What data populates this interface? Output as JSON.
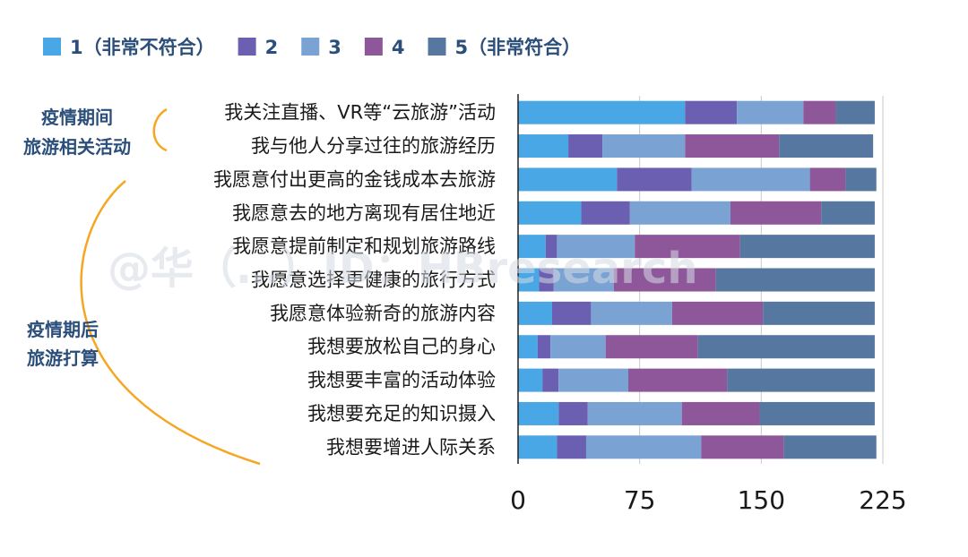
{
  "chart_data": {
    "type": "bar",
    "orientation": "horizontal",
    "stacked": true,
    "legend_position": "top-left",
    "grid": true,
    "xlim": [
      0,
      225
    ],
    "x_ticks": [
      "0",
      "75",
      "150",
      "225"
    ],
    "series": [
      {
        "name": "1（非常不符合）",
        "color": "#4aa7e6",
        "values": [
          103,
          31,
          61,
          39,
          17,
          13,
          21,
          12,
          15,
          25,
          24
        ]
      },
      {
        "name": "2",
        "color": "#6b5fb2",
        "values": [
          32,
          21,
          46,
          30,
          7,
          9,
          24,
          8,
          10,
          18,
          18
        ]
      },
      {
        "name": "3",
        "color": "#7aa3d4",
        "values": [
          41,
          51,
          73,
          62,
          48,
          37,
          50,
          34,
          43,
          58,
          71
        ]
      },
      {
        "name": "4",
        "color": "#8e579a",
        "values": [
          20,
          58,
          22,
          56,
          65,
          63,
          56,
          57,
          61,
          48,
          51
        ]
      },
      {
        "name": "5（非常符合）",
        "color": "#5577a0",
        "values": [
          24,
          58,
          19,
          33,
          83,
          98,
          69,
          109,
          91,
          71,
          57
        ]
      }
    ],
    "categories": [
      "我关注直播、VR等“云旅游”活动",
      "我与他人分享过往的旅游经历",
      "我愿意付出更高的金钱成本去旅游",
      "我愿意去的地方离现有居住地近",
      "我愿意提前制定和规划旅游路线",
      "我愿意选择更健康的旅行方式",
      "我愿意体验新奇的旅游内容",
      "我想要放松自己的身心",
      "我想要丰富的活动体验",
      "我想要充足的知识摄入",
      "我想要增进人际关系"
    ],
    "groups": [
      {
        "label_lines": [
          "疫情期间",
          "旅游相关活动"
        ]
      },
      {
        "label_lines": [
          "疫情期后",
          "旅游打算"
        ]
      }
    ]
  },
  "watermark": "@华（…）ID：HBresearch"
}
